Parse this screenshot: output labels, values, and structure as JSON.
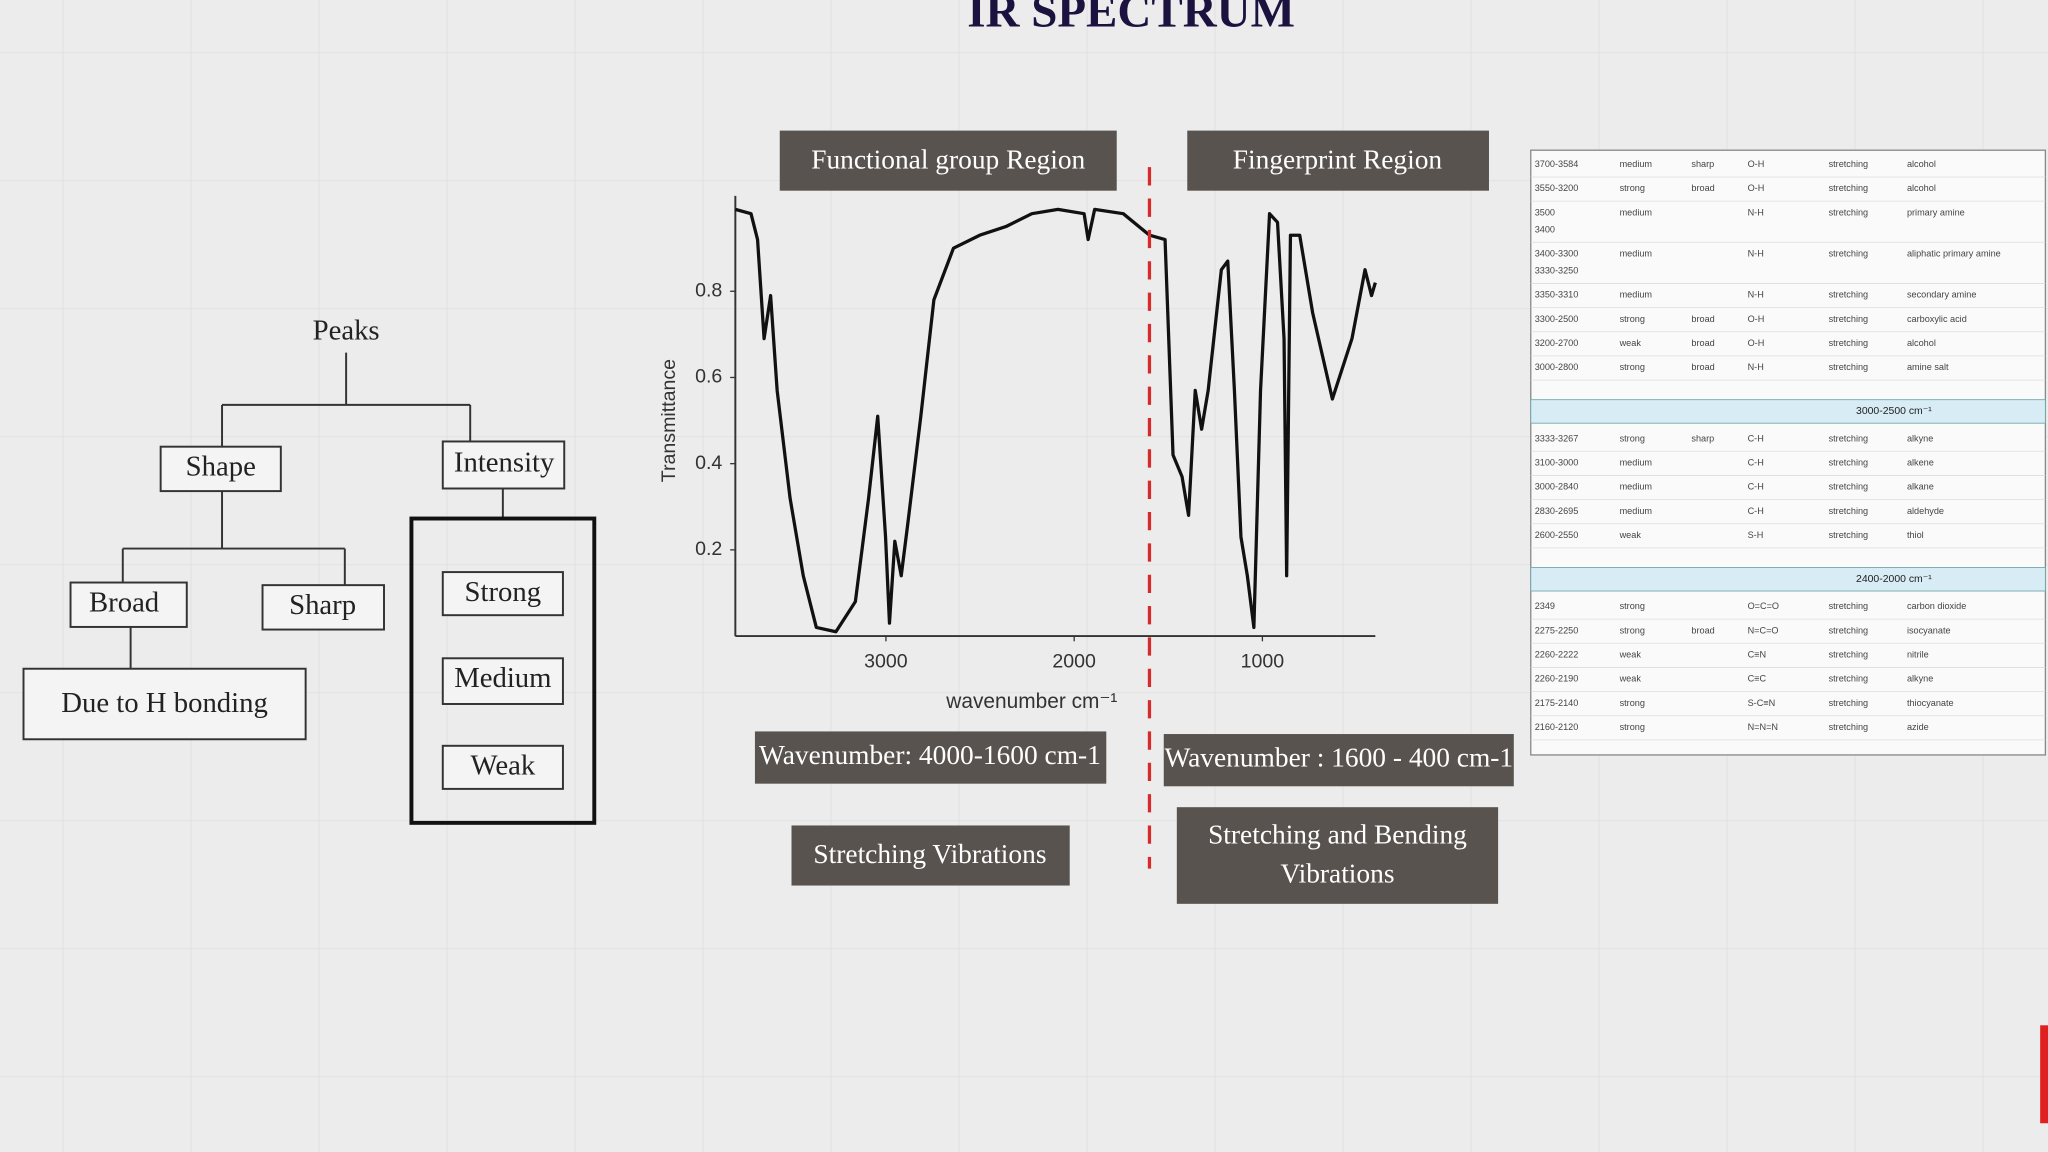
{
  "title": "IR SPECTRUM",
  "tree": {
    "root": "Peaks",
    "shape": "Shape",
    "intensity": "Intensity",
    "broad": "Broad",
    "sharp": "Sharp",
    "broad_note": "Due to H bonding",
    "strong": "Strong",
    "medium": "Medium",
    "weak": "Weak"
  },
  "regions": {
    "functional": "Functional group Region",
    "fingerprint": "Fingerprint Region",
    "functional_range": "Wavenumber: 4000-1600 cm-1",
    "fingerprint_range": "Wavenumber : 1600 - 400 cm-1",
    "functional_vibration": "Stretching Vibrations",
    "fingerprint_vibration": [
      "Stretching and Bending",
      "Vibrations"
    ]
  },
  "chart_data": {
    "type": "line",
    "color": "#111111",
    "ylabel": "Transmittance",
    "xlabel": "wavenumber cm⁻¹",
    "xlim": [
      3800,
      400
    ],
    "ylim": [
      0,
      1.0
    ],
    "xticks": [
      3000,
      2000,
      1000
    ],
    "yticks": [
      0.2,
      0.4,
      0.6,
      0.8
    ],
    "region_boundary": 1600,
    "x": [
      3800,
      3717,
      3682,
      3647,
      3613,
      3578,
      3509,
      3439,
      3370,
      3266,
      3162,
      3092,
      3044,
      3002,
      2981,
      2953,
      2919,
      2884,
      2815,
      2745,
      2641,
      2502,
      2363,
      2225,
      2086,
      1947,
      1926,
      1891,
      1739,
      1600,
      1517,
      1475,
      1427,
      1392,
      1357,
      1323,
      1288,
      1218,
      1184,
      1149,
      1114,
      1080,
      1045,
      1010,
      962,
      920,
      885,
      871,
      851,
      802,
      733,
      628,
      524,
      455,
      420,
      400
    ],
    "values": [
      0.99,
      0.98,
      0.92,
      0.69,
      0.79,
      0.57,
      0.32,
      0.14,
      0.02,
      0.01,
      0.08,
      0.32,
      0.51,
      0.23,
      0.03,
      0.22,
      0.14,
      0.26,
      0.51,
      0.78,
      0.9,
      0.93,
      0.95,
      0.98,
      0.99,
      0.98,
      0.92,
      0.99,
      0.98,
      0.93,
      0.92,
      0.42,
      0.37,
      0.28,
      0.57,
      0.48,
      0.57,
      0.85,
      0.87,
      0.57,
      0.23,
      0.14,
      0.02,
      0.57,
      0.98,
      0.96,
      0.69,
      0.14,
      0.93,
      0.93,
      0.75,
      0.55,
      0.69,
      0.85,
      0.79,
      0.82
    ]
  },
  "table": {
    "sections": [
      {
        "rows": [
          [
            "3700-3584",
            "medium",
            "sharp",
            "O-H",
            "stretching",
            "alcohol"
          ],
          [
            "3550-3200",
            "strong",
            "broad",
            "O-H",
            "stretching",
            "alcohol"
          ],
          [
            [
              "3500",
              "3400"
            ],
            "medium",
            null,
            "N-H",
            "stretching",
            "primary amine"
          ],
          [
            [
              "3400-3300",
              "3330-3250"
            ],
            "medium",
            null,
            "N-H",
            "stretching",
            "aliphatic primary amine"
          ],
          [
            "3350-3310",
            "medium",
            null,
            "N-H",
            "stretching",
            "secondary amine"
          ],
          [
            "3300-2500",
            "strong",
            "broad",
            "O-H",
            "stretching",
            "carboxylic acid"
          ],
          [
            "3200-2700",
            "weak",
            "broad",
            "O-H",
            "stretching",
            "alcohol"
          ],
          [
            "3000-2800",
            "strong",
            "broad",
            "N-H",
            "stretching",
            "amine salt"
          ]
        ]
      },
      {
        "heading": "3000-2500 cm⁻¹",
        "rows": [
          [
            "3333-3267",
            "strong",
            "sharp",
            "C-H",
            "stretching",
            "alkyne"
          ],
          [
            "3100-3000",
            "medium",
            null,
            "C-H",
            "stretching",
            "alkene"
          ],
          [
            "3000-2840",
            "medium",
            null,
            "C-H",
            "stretching",
            "alkane"
          ],
          [
            "2830-2695",
            "medium",
            null,
            "C-H",
            "stretching",
            "aldehyde"
          ],
          [
            "2600-2550",
            "weak",
            null,
            "S-H",
            "stretching",
            "thiol"
          ]
        ]
      },
      {
        "heading": "2400-2000 cm⁻¹",
        "rows": [
          [
            "2349",
            "strong",
            null,
            "O=C=O",
            "stretching",
            "carbon dioxide"
          ],
          [
            "2275-2250",
            "strong",
            "broad",
            "N=C=O",
            "stretching",
            "isocyanate"
          ],
          [
            "2260-2222",
            "weak",
            null,
            "C≡N",
            "stretching",
            "nitrile"
          ],
          [
            "2260-2190",
            "weak",
            null,
            "C≡C",
            "stretching",
            "alkyne"
          ],
          [
            "2175-2140",
            "strong",
            null,
            "S-C≡N",
            "stretching",
            "thiocyanate"
          ],
          [
            "2160-2120",
            "strong",
            null,
            "N=N=N",
            "stretching",
            "azide"
          ]
        ]
      }
    ]
  }
}
